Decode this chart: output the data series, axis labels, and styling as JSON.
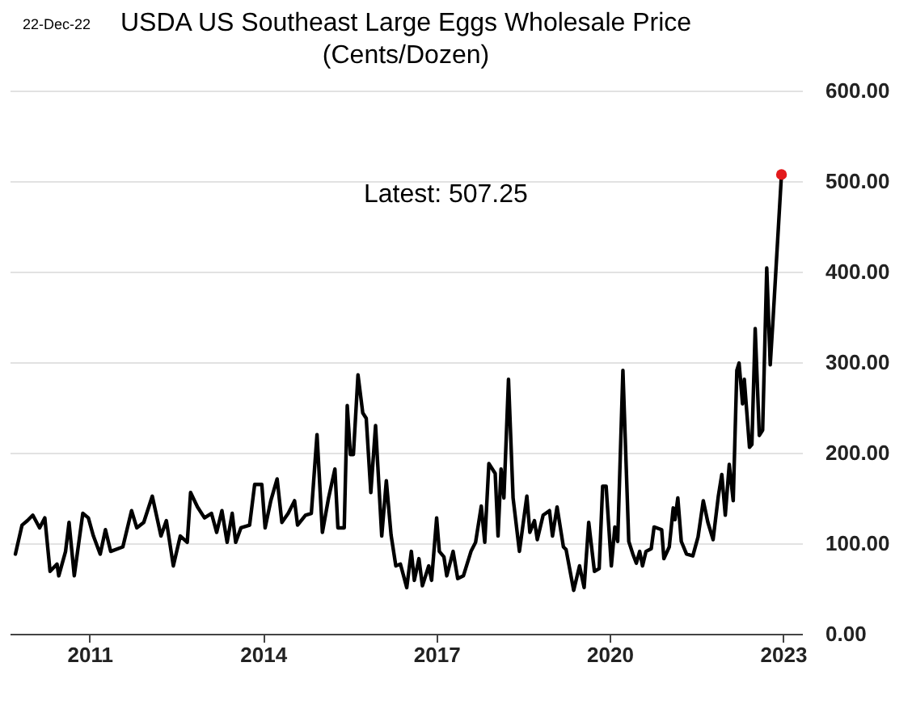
{
  "chart_data": {
    "type": "line",
    "title": "USDA US Southeast Large Eggs Wholesale Price",
    "subtitle": "(Cents/Dozen)",
    "annotations": [
      "22-Dec-22",
      "Latest:  507.25"
    ],
    "xlim": [
      "2009-08-15",
      "2023-05-01"
    ],
    "xticks": [
      "2011",
      "2014",
      "2017",
      "2020",
      "2023"
    ],
    "ylim": [
      0,
      600
    ],
    "yticks": [
      {
        "value": 0,
        "label": "0.00"
      },
      {
        "value": 100,
        "label": "100.00"
      },
      {
        "value": 200,
        "label": "200.00"
      },
      {
        "value": 300,
        "label": "300.00"
      },
      {
        "value": 400,
        "label": "400.00"
      },
      {
        "value": 500,
        "label": "500.00"
      },
      {
        "value": 600,
        "label": "600.00"
      }
    ],
    "grid": "y",
    "line_style": "solid",
    "series": [
      {
        "color": "#000000",
        "x": [
          "2009-09-20",
          "2009-11-01",
          "2009-12-05",
          "2010-01-08",
          "2010-02-20",
          "2010-03-25",
          "2010-04-27",
          "2010-06-10",
          "2010-06-21",
          "2010-08-03",
          "2010-08-25",
          "2010-09-27",
          "2010-11-20",
          "2010-12-25",
          "2011-01-26",
          "2011-03-10",
          "2011-04-12",
          "2011-05-15",
          "2011-07-31",
          "2011-09-24",
          "2011-10-27",
          "2011-12-10",
          "2012-02-02",
          "2012-03-28",
          "2012-05-01",
          "2012-06-14",
          "2012-07-28",
          "2012-09-10",
          "2012-10-01",
          "2012-11-14",
          "2012-12-28",
          "2013-02-10",
          "2013-03-15",
          "2013-04-17",
          "2013-05-20",
          "2013-06-21",
          "2013-07-13",
          "2013-08-15",
          "2013-10-09",
          "2013-11-10",
          "2013-12-25",
          "2014-01-15",
          "2014-02-20",
          "2014-04-01",
          "2014-05-01",
          "2014-06-10",
          "2014-07-20",
          "2014-08-08",
          "2014-09-27",
          "2014-11-03",
          "2014-12-09",
          "2015-01-12",
          "2015-02-20",
          "2015-04-01",
          "2015-04-20",
          "2015-05-30",
          "2015-06-18",
          "2015-07-08",
          "2015-07-27",
          "2015-08-25",
          "2015-09-24",
          "2015-10-16",
          "2015-11-14",
          "2015-12-14",
          "2016-01-22",
          "2016-02-20",
          "2016-03-21",
          "2016-04-20",
          "2016-05-19",
          "2016-06-28",
          "2016-07-27",
          "2016-08-15",
          "2016-09-13",
          "2016-10-05",
          "2016-11-14",
          "2016-12-02",
          "2017-01-03",
          "2017-01-20",
          "2017-02-18",
          "2017-03-08",
          "2017-04-17",
          "2017-05-16",
          "2017-06-21",
          "2017-08-08",
          "2017-09-06",
          "2017-10-12",
          "2017-11-03",
          "2017-11-29",
          "2018-01-08",
          "2018-01-26",
          "2018-02-14",
          "2018-03-04",
          "2018-04-02",
          "2018-05-01",
          "2018-06-10",
          "2018-07-27",
          "2018-08-15",
          "2018-09-13",
          "2018-10-01",
          "2018-11-07",
          "2018-12-17",
          "2019-01-05",
          "2019-02-03",
          "2019-03-15",
          "2019-04-01",
          "2019-05-19",
          "2019-06-25",
          "2019-07-24",
          "2019-08-22",
          "2019-09-27",
          "2019-10-27",
          "2019-11-18",
          "2019-12-10",
          "2020-01-12",
          "2020-02-03",
          "2020-02-21",
          "2020-03-25",
          "2020-05-01",
          "2020-05-27",
          "2020-06-18",
          "2020-07-09",
          "2020-07-27",
          "2020-08-18",
          "2020-09-20",
          "2020-10-08",
          "2020-11-25",
          "2020-12-09",
          "2021-01-12",
          "2021-02-06",
          "2021-02-17",
          "2021-03-07",
          "2021-03-29",
          "2021-05-01",
          "2021-06-10",
          "2021-07-13",
          "2021-08-15",
          "2021-09-13",
          "2021-10-16",
          "2021-11-18",
          "2021-12-10",
          "2022-01-01",
          "2022-01-26",
          "2022-02-20",
          "2022-03-15",
          "2022-03-29",
          "2022-04-20",
          "2022-05-01",
          "2022-06-03",
          "2022-06-18",
          "2022-07-09",
          "2022-08-04",
          "2022-08-25",
          "2022-09-20",
          "2022-10-12",
          "2022-10-30",
          "2022-12-22"
        ],
        "values": [
          88,
          120,
          125,
          131,
          117,
          128,
          69,
          77,
          64,
          91,
          123,
          64,
          133,
          128,
          108,
          88,
          115,
          91,
          96,
          136,
          117,
          123,
          152,
          108,
          125,
          75,
          108,
          101,
          156,
          140,
          128,
          133,
          112,
          136,
          101,
          133,
          101,
          117,
          120,
          165,
          165,
          117,
          147,
          171,
          123,
          133,
          147,
          120,
          131,
          133,
          220,
          112,
          150,
          182,
          117,
          117,
          252,
          198,
          198,
          286,
          244,
          238,
          156,
          230,
          108,
          169,
          109,
          75,
          77,
          51,
          91,
          59,
          83,
          53,
          75,
          59,
          128,
          91,
          85,
          64,
          91,
          61,
          64,
          91,
          101,
          141,
          101,
          188,
          177,
          108,
          182,
          150,
          281,
          150,
          91,
          152,
          112,
          125,
          104,
          131,
          136,
          108,
          140,
          96,
          93,
          48,
          75,
          51,
          123,
          69,
          72,
          163,
          163,
          75,
          118,
          102,
          291,
          102,
          88,
          78,
          91,
          75,
          91,
          94,
          118,
          115,
          83,
          96,
          139,
          126,
          150,
          102,
          88,
          86,
          107,
          147,
          123,
          104,
          152,
          176,
          131,
          187,
          147,
          291,
          299,
          254,
          281,
          206,
          209,
          337,
          219,
          225,
          404,
          297,
          348,
          507.25
        ]
      },
      {
        "type": "scatter",
        "color": "#e31a1c",
        "marker": "circle",
        "x": [
          "2022-12-22"
        ],
        "values": [
          507.25
        ]
      }
    ]
  }
}
